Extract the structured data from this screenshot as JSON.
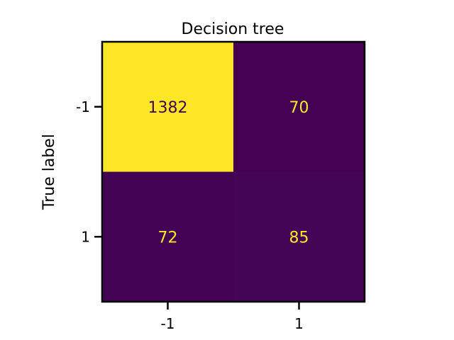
{
  "chart_data": {
    "type": "heatmap",
    "title": "Decision tree",
    "xlabel": "",
    "ylabel": "True label",
    "x_categories": [
      "-1",
      "1"
    ],
    "y_categories": [
      "-1",
      "1"
    ],
    "values": [
      [
        1382,
        70
      ],
      [
        72,
        85
      ]
    ],
    "colormap": "viridis",
    "colorbar": false,
    "grid": false,
    "colors": {
      "low": "#440154",
      "high": "#fde725",
      "text_on_low": "#fde725",
      "text_on_high": "#440154"
    }
  }
}
